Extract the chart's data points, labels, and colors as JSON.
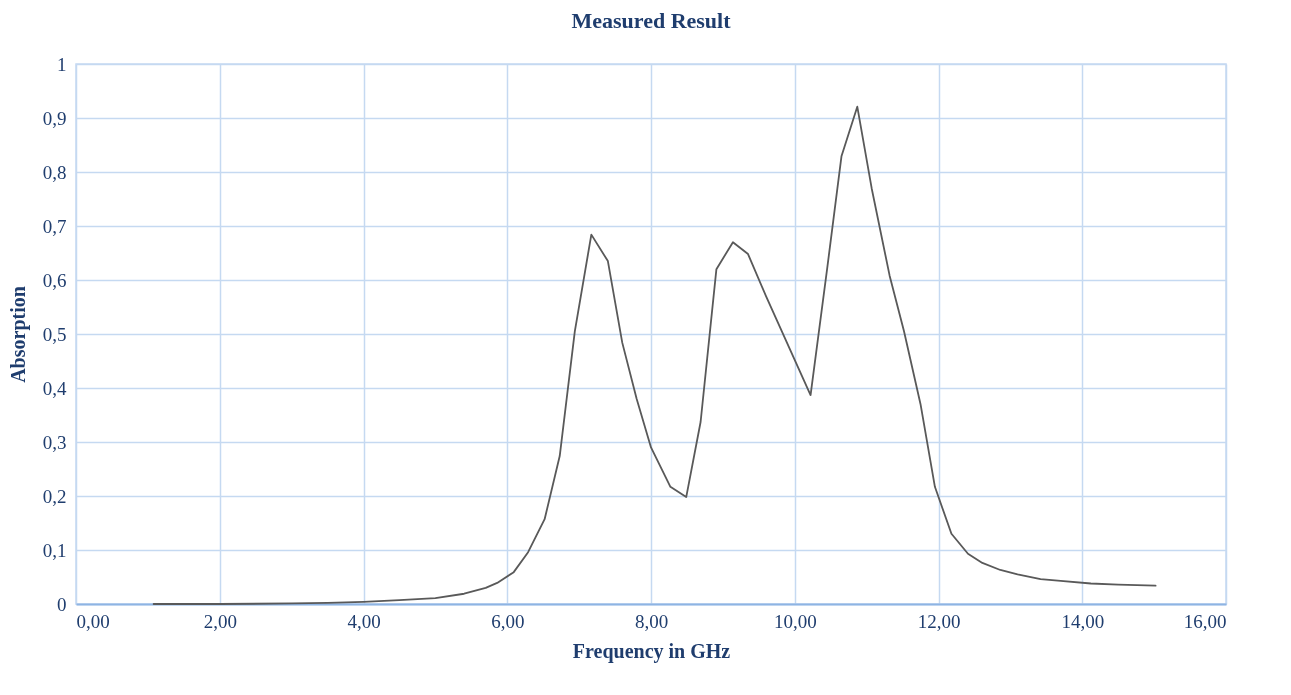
{
  "chart_data": {
    "type": "line",
    "title": "Measured Result",
    "xlabel": "Frequency in GHz",
    "ylabel": "Absorption",
    "xlim": [
      0,
      16
    ],
    "ylim": [
      0,
      1
    ],
    "xticks": [
      {
        "value": 0,
        "label": "0,00"
      },
      {
        "value": 2,
        "label": "2,00"
      },
      {
        "value": 4,
        "label": "4,00"
      },
      {
        "value": 6,
        "label": "6,00"
      },
      {
        "value": 8,
        "label": "8,00"
      },
      {
        "value": 10,
        "label": "10,00"
      },
      {
        "value": 12,
        "label": "12,00"
      },
      {
        "value": 14,
        "label": "14,00"
      },
      {
        "value": 16,
        "label": "16,00"
      }
    ],
    "yticks": [
      0,
      {
        "value": 0.1,
        "label": "0,1"
      },
      {
        "value": 0.2,
        "label": "0,2"
      },
      {
        "value": 0.3,
        "label": "0,3"
      },
      {
        "value": 0.4,
        "label": "0,4"
      },
      {
        "value": 0.5,
        "label": "0,5"
      },
      {
        "value": 0.6,
        "label": "0,6"
      },
      {
        "value": 0.7,
        "label": "0,7"
      },
      {
        "value": 0.8,
        "label": "0,8"
      },
      {
        "value": 0.9,
        "label": "0,9"
      },
      1
    ],
    "grid": true,
    "x": [
      1.08,
      2.0,
      3.0,
      3.5,
      4.0,
      4.5,
      5.0,
      5.4,
      5.7,
      5.86,
      6.09,
      6.29,
      6.52,
      6.73,
      6.94,
      7.17,
      7.4,
      7.6,
      7.8,
      8.0,
      8.27,
      8.49,
      8.69,
      8.91,
      9.14,
      9.35,
      9.6,
      10.22,
      10.45,
      10.65,
      10.87,
      11.07,
      11.32,
      11.52,
      11.75,
      11.95,
      12.18,
      12.41,
      12.61,
      12.86,
      13.1,
      13.42,
      13.7,
      14.12,
      14.5,
      15.02
    ],
    "series": [
      {
        "color": "#595959",
        "values": [
          0,
          0,
          0.001,
          0.002,
          0.004,
          0.007,
          0.011,
          0.019,
          0.03,
          0.039,
          0.059,
          0.096,
          0.157,
          0.274,
          0.505,
          0.684,
          0.635,
          0.484,
          0.38,
          0.29,
          0.217,
          0.198,
          0.337,
          0.62,
          0.67,
          0.648,
          0.57,
          0.387,
          0.62,
          0.829,
          0.921,
          0.77,
          0.608,
          0.505,
          0.37,
          0.217,
          0.13,
          0.093,
          0.076,
          0.063,
          0.055,
          0.046,
          0.043,
          0.038,
          0.036,
          0.034
        ]
      }
    ]
  }
}
